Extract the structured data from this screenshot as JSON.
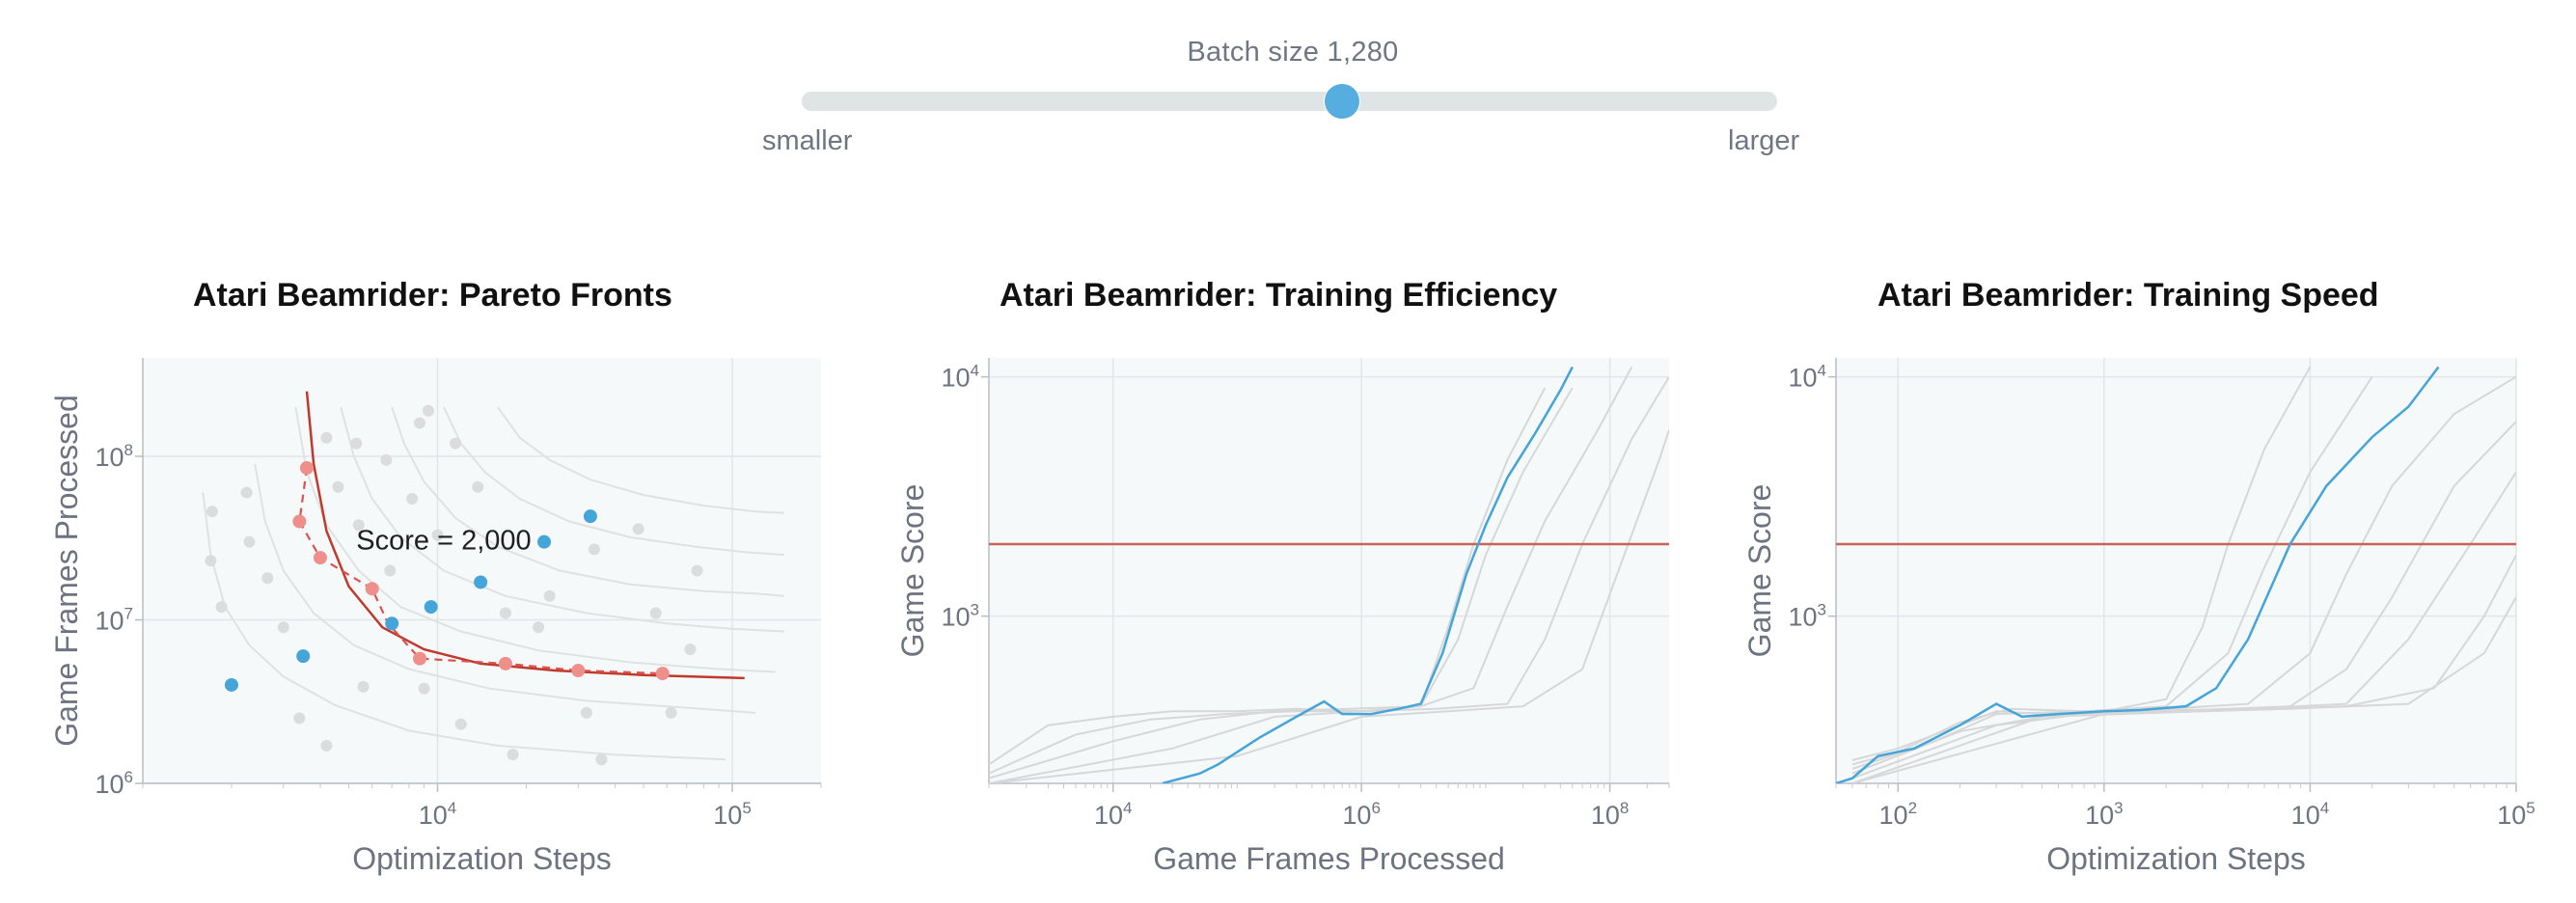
{
  "slider": {
    "title": "Batch size 1,280",
    "min_label": "smaller",
    "max_label": "larger",
    "position": 0.47,
    "colors": {
      "track": "#dfe5e4",
      "thumb": "#56aee0"
    }
  },
  "colors": {
    "highlight": "#45a5d9",
    "background_runs": "#d6d7d9",
    "target": "#c0392b",
    "plot_bg": "#f6f9fa"
  },
  "chart_data": [
    {
      "type": "scatter",
      "title": "Atari Beamrider: Pareto Fronts",
      "xlabel": "Optimization Steps",
      "ylabel": "Game Frames Processed",
      "xscale": "log",
      "yscale": "log",
      "xlim": [
        1000,
        200000
      ],
      "ylim": [
        1000000,
        400000000
      ],
      "x_ticks": [
        {
          "value": 10000,
          "label": "10",
          "exp": "4"
        },
        {
          "value": 100000,
          "label": "10",
          "exp": "5"
        }
      ],
      "y_ticks": [
        {
          "value": 1000000,
          "label": "10",
          "exp": "6"
        },
        {
          "value": 10000000,
          "label": "10",
          "exp": "7"
        },
        {
          "value": 100000000,
          "label": "10",
          "exp": "8"
        }
      ],
      "annotation": {
        "text": "Score = 2,000",
        "x": 5300,
        "y": 27000000
      },
      "target_front": {
        "x": [
          3600,
          3800,
          4200,
          5000,
          6500,
          9000,
          14000,
          25000,
          50000,
          110000
        ],
        "y": [
          250000000,
          90000000,
          35000000,
          16000000,
          9000000,
          6600000,
          5400000,
          4900000,
          4600000,
          4400000
        ]
      },
      "grey_fronts": [
        {
          "x": [
            1600,
            1700,
            1900,
            2300,
            3000,
            4500,
            8000,
            16000,
            40000,
            95000
          ],
          "y": [
            60000000,
            25000000,
            12000000,
            7000000,
            4500000,
            3000000,
            2100000,
            1700000,
            1500000,
            1400000
          ]
        },
        {
          "x": [
            2400,
            2600,
            3000,
            3800,
            5200,
            8000,
            15000,
            32000,
            70000,
            120000
          ],
          "y": [
            90000000,
            40000000,
            20000000,
            11000000,
            7000000,
            5000000,
            3800000,
            3200000,
            2900000,
            2700000
          ]
        },
        {
          "x": [
            3300,
            3600,
            4200,
            5400,
            7500,
            12000,
            22000,
            45000,
            90000,
            140000
          ],
          "y": [
            200000000,
            80000000,
            38000000,
            20000000,
            12000000,
            8500000,
            6500000,
            5500000,
            5000000,
            4800000
          ]
        },
        {
          "x": [
            4700,
            5200,
            6000,
            7500,
            10500,
            17000,
            32000,
            60000,
            100000,
            150000
          ],
          "y": [
            200000000,
            100000000,
            55000000,
            32000000,
            20000000,
            14000000,
            11000000,
            9500000,
            8800000,
            8500000
          ]
        },
        {
          "x": [
            7000,
            7700,
            9000,
            11500,
            16000,
            26000,
            45000,
            80000,
            120000,
            150000
          ],
          "y": [
            200000000,
            120000000,
            70000000,
            42000000,
            28000000,
            20000000,
            16500000,
            15000000,
            14500000,
            14000000
          ]
        },
        {
          "x": [
            10500,
            12000,
            14500,
            19000,
            28000,
            45000,
            75000,
            110000,
            150000
          ],
          "y": [
            200000000,
            120000000,
            80000000,
            55000000,
            40000000,
            32000000,
            28000000,
            26000000,
            25000000
          ]
        },
        {
          "x": [
            16000,
            19000,
            24000,
            33000,
            50000,
            80000,
            120000,
            150000
          ],
          "y": [
            200000000,
            130000000,
            95000000,
            72000000,
            58000000,
            50000000,
            46000000,
            45000000
          ]
        }
      ],
      "grey_points": [
        {
          "x": 1720,
          "y": 46000000
        },
        {
          "x": 1700,
          "y": 23000000
        },
        {
          "x": 1850,
          "y": 12000000
        },
        {
          "x": 2250,
          "y": 60000000
        },
        {
          "x": 2300,
          "y": 30000000
        },
        {
          "x": 2650,
          "y": 18000000
        },
        {
          "x": 3000,
          "y": 9000000
        },
        {
          "x": 3400,
          "y": 2500000
        },
        {
          "x": 4200,
          "y": 1700000
        },
        {
          "x": 5600,
          "y": 3900000
        },
        {
          "x": 9000,
          "y": 3800000
        },
        {
          "x": 4200,
          "y": 130000000
        },
        {
          "x": 4600,
          "y": 65000000
        },
        {
          "x": 5400,
          "y": 38000000
        },
        {
          "x": 6900,
          "y": 20000000
        },
        {
          "x": 5300,
          "y": 120000000
        },
        {
          "x": 6700,
          "y": 95000000
        },
        {
          "x": 8200,
          "y": 55000000
        },
        {
          "x": 10000,
          "y": 33000000
        },
        {
          "x": 8700,
          "y": 160000000
        },
        {
          "x": 9300,
          "y": 190000000
        },
        {
          "x": 11500,
          "y": 120000000
        },
        {
          "x": 13700,
          "y": 65000000
        },
        {
          "x": 17000,
          "y": 11000000
        },
        {
          "x": 22000,
          "y": 9000000
        },
        {
          "x": 24000,
          "y": 14000000
        },
        {
          "x": 34000,
          "y": 27000000
        },
        {
          "x": 48000,
          "y": 36000000
        },
        {
          "x": 32000,
          "y": 2700000
        },
        {
          "x": 55000,
          "y": 11000000
        },
        {
          "x": 62000,
          "y": 2700000
        },
        {
          "x": 72000,
          "y": 6600000
        },
        {
          "x": 76000,
          "y": 20000000
        },
        {
          "x": 12000,
          "y": 2300000
        },
        {
          "x": 18000,
          "y": 1500000
        },
        {
          "x": 36000,
          "y": 1400000
        }
      ],
      "score_points": [
        {
          "x": 3600,
          "y": 85000000
        },
        {
          "x": 3400,
          "y": 40000000
        },
        {
          "x": 4000,
          "y": 24000000
        },
        {
          "x": 6000,
          "y": 15500000
        },
        {
          "x": 8700,
          "y": 5800000
        },
        {
          "x": 17000,
          "y": 5400000
        },
        {
          "x": 30000,
          "y": 4900000
        },
        {
          "x": 58000,
          "y": 4700000
        }
      ],
      "score_dashed": {
        "x": [
          3600,
          3400,
          4000,
          6000,
          6800,
          8700,
          17000,
          30000,
          58000
        ],
        "y": [
          85000000,
          40000000,
          24000000,
          15500000,
          9500000,
          5800000,
          5400000,
          4900000,
          4700000
        ]
      },
      "highlight_points": [
        {
          "x": 2000,
          "y": 4000000
        },
        {
          "x": 3500,
          "y": 6000000
        },
        {
          "x": 7000,
          "y": 9500000
        },
        {
          "x": 9500,
          "y": 12000000
        },
        {
          "x": 14000,
          "y": 17000000
        },
        {
          "x": 23000,
          "y": 30000000
        },
        {
          "x": 33000,
          "y": 43000000
        }
      ]
    },
    {
      "type": "line",
      "title": "Atari Beamrider: Training Efficiency",
      "xlabel": "Game Frames Processed",
      "ylabel": "Game Score",
      "xscale": "log",
      "yscale": "log",
      "xlim": [
        1000,
        300000000
      ],
      "ylim": [
        200,
        12000
      ],
      "target_score": 2000,
      "x_ticks": [
        {
          "value": 10000,
          "label": "10",
          "exp": "4"
        },
        {
          "value": 1000000,
          "label": "10",
          "exp": "6"
        },
        {
          "value": 100000000,
          "label": "10",
          "exp": "8"
        }
      ],
      "y_ticks": [
        {
          "value": 1000,
          "label": "10",
          "exp": "3"
        },
        {
          "value": 10000,
          "label": "10",
          "exp": "4"
        }
      ],
      "highlight_series": {
        "x": [
          25000,
          50000,
          70000,
          150000,
          300000,
          500000,
          700000,
          1200000,
          2000000,
          3000000,
          4500000,
          7000000,
          10000000,
          15000000,
          25000000,
          40000000,
          50000000
        ],
        "y": [
          200,
          220,
          240,
          310,
          380,
          440,
          390,
          390,
          410,
          430,
          700,
          1500,
          2400,
          3800,
          5800,
          8800,
          11000
        ]
      },
      "background_series": [
        {
          "x": [
            1000,
            3000,
            10000,
            30000,
            100000,
            300000,
            1000000,
            3000000,
            5000000,
            8000000,
            15000000,
            30000000
          ],
          "y": [
            240,
            350,
            380,
            400,
            400,
            410,
            400,
            420,
            900,
            2000,
            4500,
            9000
          ]
        },
        {
          "x": [
            1000,
            5000,
            20000,
            80000,
            300000,
            1000000,
            3000000,
            6000000,
            10000000,
            20000000,
            50000000
          ],
          "y": [
            220,
            320,
            370,
            390,
            400,
            400,
            420,
            800,
            1800,
            4000,
            9000
          ]
        },
        {
          "x": [
            1000,
            10000,
            50000,
            200000,
            800000,
            3000000,
            8000000,
            15000000,
            30000000,
            80000000,
            150000000
          ],
          "y": [
            210,
            300,
            370,
            400,
            410,
            420,
            500,
            1100,
            2500,
            6000,
            11000
          ]
        },
        {
          "x": [
            1000,
            30000,
            200000,
            1000000,
            4000000,
            15000000,
            30000000,
            60000000,
            150000000,
            300000000
          ],
          "y": [
            200,
            280,
            380,
            400,
            410,
            430,
            800,
            2000,
            5500,
            10000
          ]
        },
        {
          "x": [
            1000,
            100000,
            1000000,
            5000000,
            20000000,
            60000000,
            120000000,
            250000000,
            300000000
          ],
          "y": [
            200,
            260,
            380,
            400,
            420,
            600,
            1600,
            4500,
            6000
          ]
        }
      ]
    },
    {
      "type": "line",
      "title": "Atari Beamrider: Training Speed",
      "xlabel": "Optimization Steps",
      "ylabel": "Game Score",
      "xscale": "log",
      "yscale": "log",
      "xlim": [
        50,
        100000
      ],
      "ylim": [
        200,
        12000
      ],
      "target_score": 2000,
      "x_ticks": [
        {
          "value": 100,
          "label": "10",
          "exp": "2"
        },
        {
          "value": 1000,
          "label": "10",
          "exp": "3"
        },
        {
          "value": 10000,
          "label": "10",
          "exp": "4"
        },
        {
          "value": 100000,
          "label": "10",
          "exp": "5"
        }
      ],
      "y_ticks": [
        {
          "value": 1000,
          "label": "10",
          "exp": "3"
        },
        {
          "value": 10000,
          "label": "10",
          "exp": "4"
        }
      ],
      "highlight_series": {
        "x": [
          50,
          60,
          80,
          120,
          200,
          300,
          400,
          600,
          1000,
          1500,
          2500,
          3500,
          5000,
          8000,
          12000,
          20000,
          30000,
          42000
        ],
        "y": [
          200,
          210,
          260,
          280,
          350,
          430,
          380,
          390,
          400,
          405,
          420,
          500,
          800,
          2000,
          3500,
          5600,
          7500,
          11000
        ]
      },
      "background_series": [
        {
          "x": [
            60,
            100,
            200,
            300,
            500,
            1000,
            2000,
            3000,
            4000,
            6000,
            10000
          ],
          "y": [
            250,
            280,
            350,
            400,
            390,
            400,
            450,
            900,
            2000,
            5000,
            11000
          ]
        },
        {
          "x": [
            60,
            100,
            200,
            350,
            800,
            2000,
            4000,
            6000,
            10000,
            20000
          ],
          "y": [
            240,
            270,
            360,
            410,
            400,
            420,
            700,
            1600,
            4000,
            10000
          ]
        },
        {
          "x": [
            60,
            150,
            300,
            800,
            2000,
            5000,
            10000,
            15000,
            25000,
            50000,
            100000
          ],
          "y": [
            230,
            300,
            390,
            400,
            410,
            430,
            700,
            1500,
            3500,
            7000,
            10000
          ]
        },
        {
          "x": [
            60,
            200,
            600,
            2000,
            8000,
            15000,
            25000,
            50000,
            100000
          ],
          "y": [
            220,
            330,
            390,
            400,
            420,
            600,
            1200,
            3500,
            6500
          ]
        },
        {
          "x": [
            60,
            300,
            1000,
            5000,
            15000,
            30000,
            60000,
            100000
          ],
          "y": [
            210,
            350,
            400,
            410,
            430,
            800,
            2000,
            4000
          ]
        },
        {
          "x": [
            60,
            500,
            3000,
            15000,
            40000,
            70000,
            100000
          ],
          "y": [
            200,
            380,
            400,
            420,
            500,
            1000,
            1800
          ]
        },
        {
          "x": [
            60,
            1000,
            8000,
            30000,
            70000,
            100000
          ],
          "y": [
            200,
            390,
            410,
            430,
            700,
            1200
          ]
        }
      ]
    }
  ]
}
